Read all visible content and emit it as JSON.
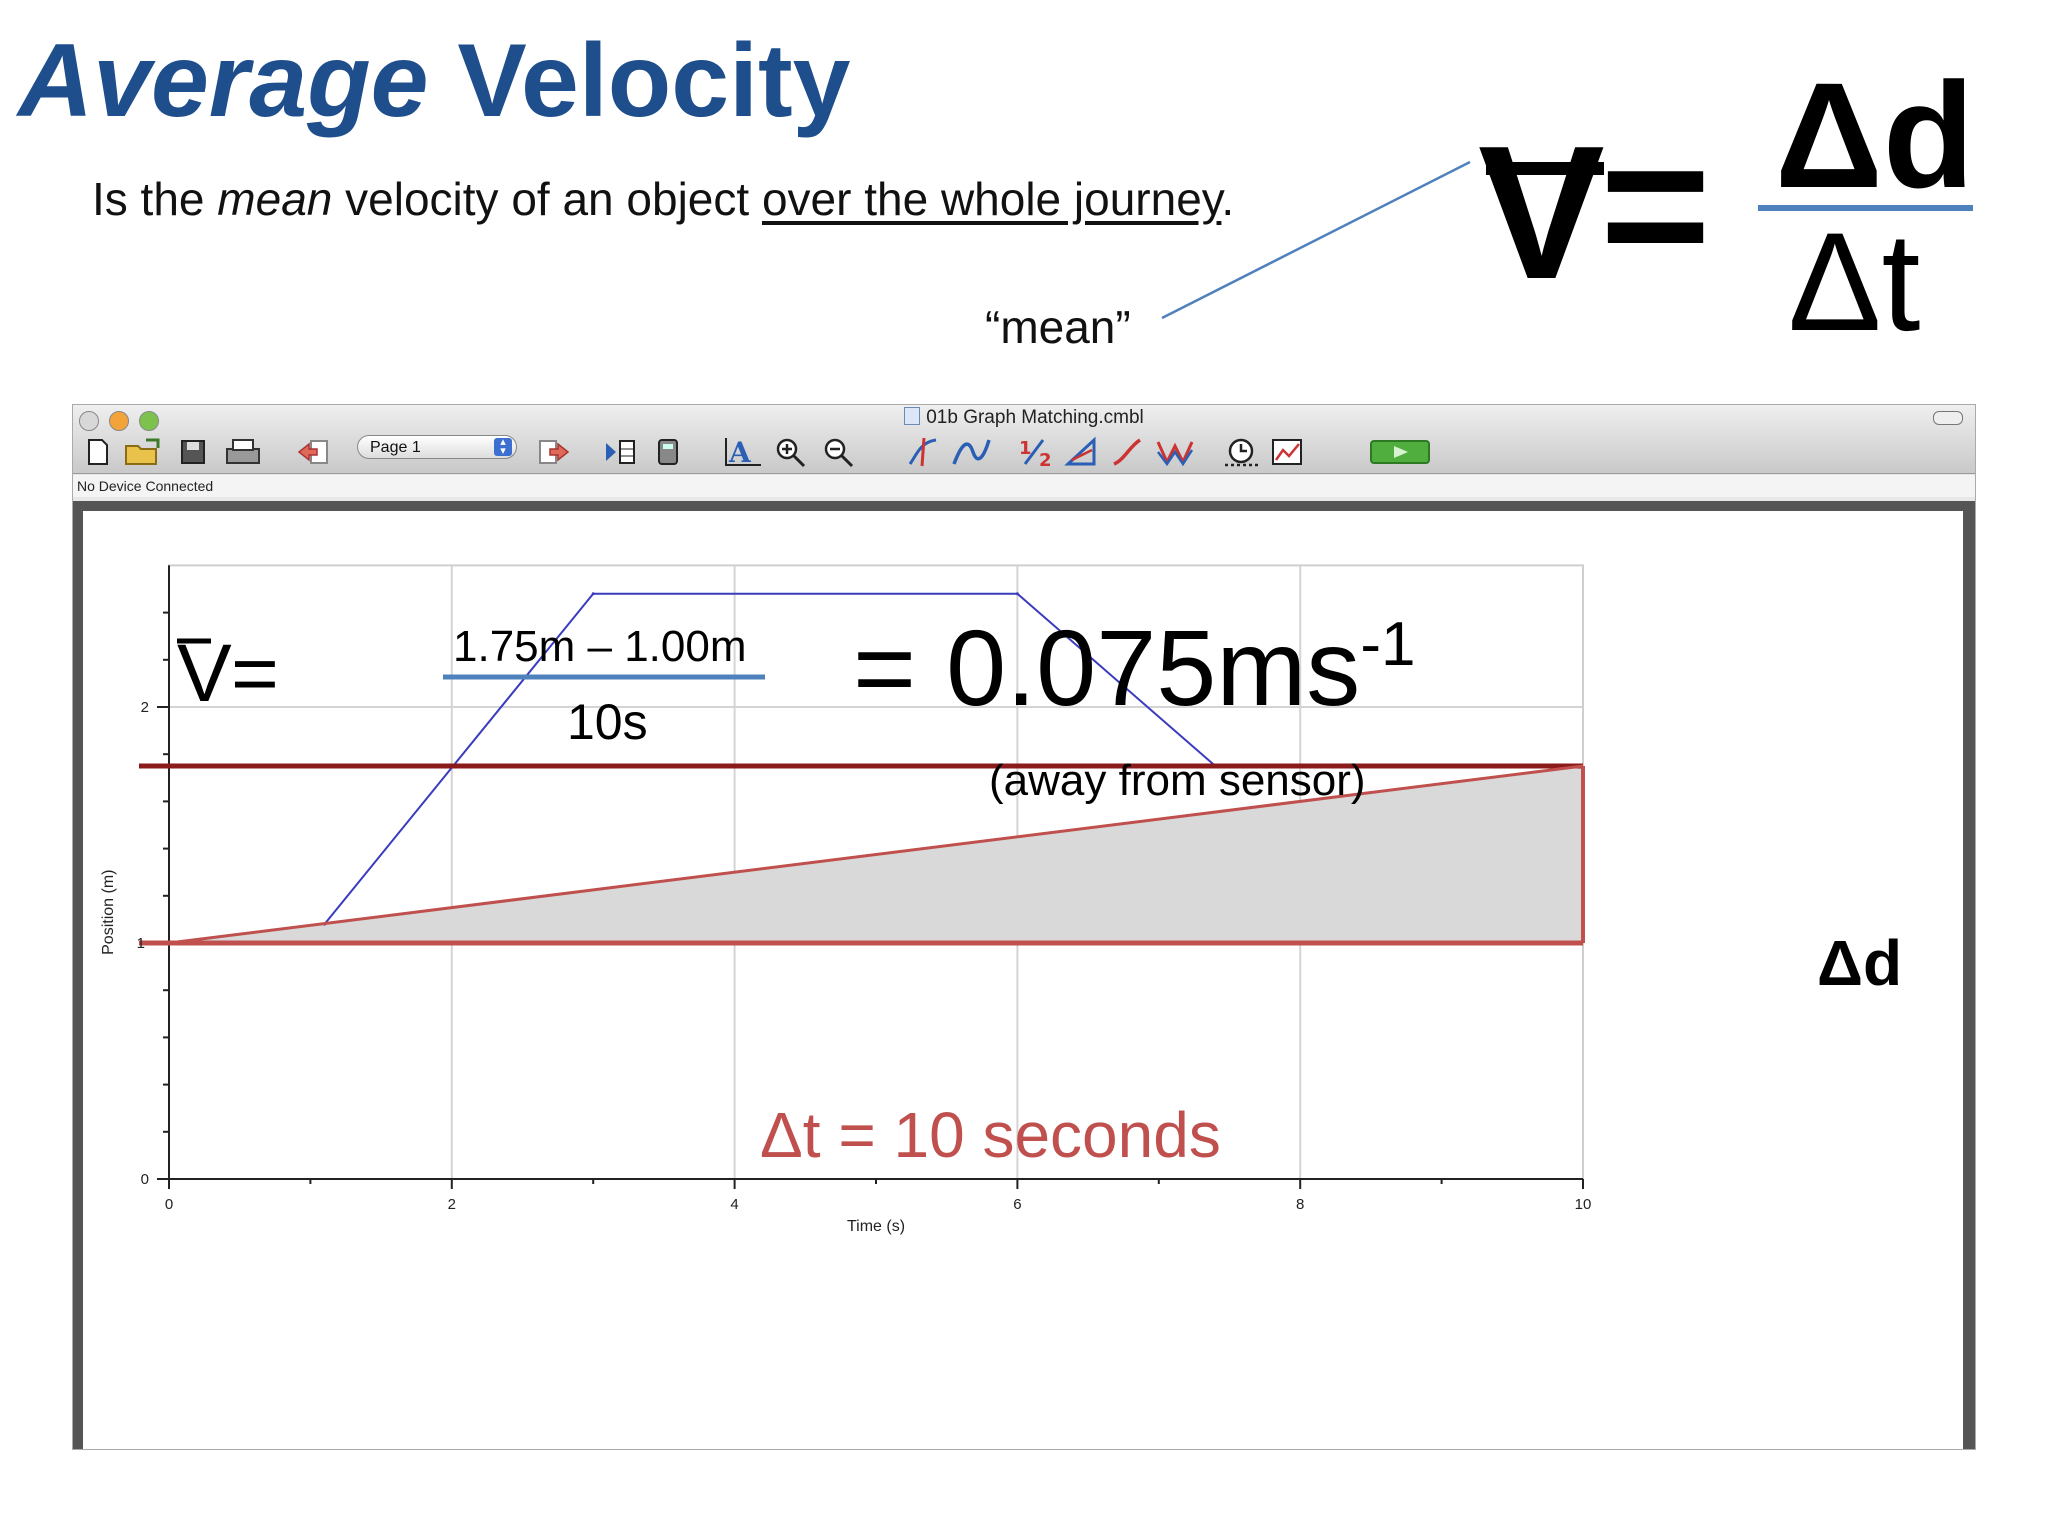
{
  "slide": {
    "title_italic": "Average",
    "title_rest": "Velocity",
    "subtitle_start": "Is the ",
    "subtitle_em": "mean",
    "subtitle_mid": " velocity of an object ",
    "subtitle_underlined": "over the whole journey",
    "subtitle_end": ".",
    "mean_note": "“mean”",
    "formula": {
      "v": "V",
      "equals": "=",
      "numerator": "Δd",
      "denominator": "Δt"
    }
  },
  "window": {
    "title": "01b Graph Matching.cmbl",
    "page_select": "Page 1",
    "status": "No Device Connected",
    "toolbar_icons": [
      "new-file-icon",
      "open-folder-icon",
      "save-icon",
      "print-icon",
      "back-page-icon",
      "page-select",
      "forward-page-icon",
      "data-table-icon",
      "calculator-icon",
      "autoscale-icon",
      "zoom-in-icon",
      "zoom-out-icon",
      "examine-icon",
      "curve-fit-icon",
      "half-icon",
      "tangent-icon",
      "linear-fit-icon",
      "graph-match-icon",
      "timer-icon",
      "stats-icon",
      "collect-button"
    ]
  },
  "annotations": {
    "v_label": "V",
    "v_eq": "=",
    "numerator": "1.75m – 1.00m",
    "denominator": "10s",
    "result_prefix": "= 0.075ms",
    "result_exp": "-1",
    "direction": "(away from sensor)",
    "delta_d": "Δd",
    "delta_t": "Δt = 10 seconds"
  },
  "chart_data": {
    "type": "line",
    "xlabel": "Time (s)",
    "ylabel": "Position (m)",
    "xlim": [
      0,
      10
    ],
    "ylim": [
      0,
      2.6
    ],
    "x_ticks": [
      0,
      2,
      4,
      6,
      8,
      10
    ],
    "y_ticks": [
      0,
      2
    ],
    "y_tick_mark_1": "1",
    "grid": true,
    "series": [
      {
        "color": "#3b3bbf",
        "x": [
          1.1,
          3.0,
          6.0,
          7.4
        ],
        "y": [
          1.08,
          2.48,
          2.48,
          1.75
        ]
      }
    ],
    "reference_lines": [
      {
        "y": 1.75,
        "color": "#8b1a1a"
      },
      {
        "y": 1.0,
        "color": "#c0504d"
      }
    ],
    "average_line": {
      "x": [
        0,
        10
      ],
      "y": [
        1.0,
        1.75
      ],
      "color": "#c0504d",
      "fill": "#d9d9d9"
    }
  }
}
